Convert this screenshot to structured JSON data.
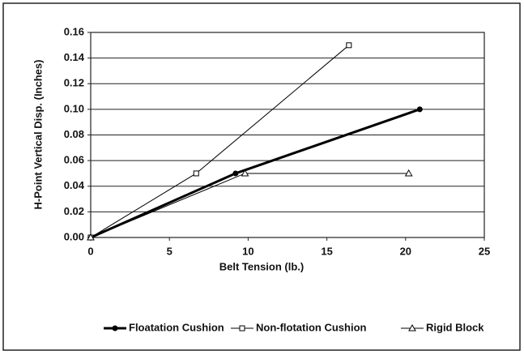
{
  "chart_data": {
    "type": "line",
    "xlabel": "Belt Tension (lb.)",
    "ylabel": "H-Point Vertical Disp. (Inches)",
    "xlim": [
      0,
      25
    ],
    "xticks": [
      0,
      5,
      10,
      15,
      20,
      25
    ],
    "ylim": [
      0,
      0.16
    ],
    "yticks": [
      {
        "value": 0,
        "label": "0.00"
      },
      {
        "value": 0.02,
        "label": "0.02"
      },
      {
        "value": 0.04,
        "label": "0.04"
      },
      {
        "value": 0.06,
        "label": "0.06"
      },
      {
        "value": 0.08,
        "label": "0.08"
      },
      {
        "value": 0.1,
        "label": "0.10"
      },
      {
        "value": 0.12,
        "label": "0.12"
      },
      {
        "value": 0.14,
        "label": "0.14"
      },
      {
        "value": 0.16,
        "label": "0.16"
      }
    ],
    "grid": true,
    "legend": "bottom",
    "series": [
      {
        "name": "Floatation Cushion",
        "color": "#000000",
        "marker": "circle",
        "x": [
          0,
          9.2,
          20.9
        ],
        "values": [
          0,
          0.05,
          0.1
        ]
      },
      {
        "name": "Non-flotation Cushion",
        "color": "#000000",
        "marker": "square",
        "x": [
          0,
          6.7,
          16.4
        ],
        "values": [
          0,
          0.05,
          0.15
        ]
      },
      {
        "name": "Rigid Block",
        "color": "#000000",
        "marker": "triangle",
        "x": [
          0,
          9.8,
          20.2
        ],
        "values": [
          0,
          0.05,
          0.05
        ]
      }
    ]
  }
}
